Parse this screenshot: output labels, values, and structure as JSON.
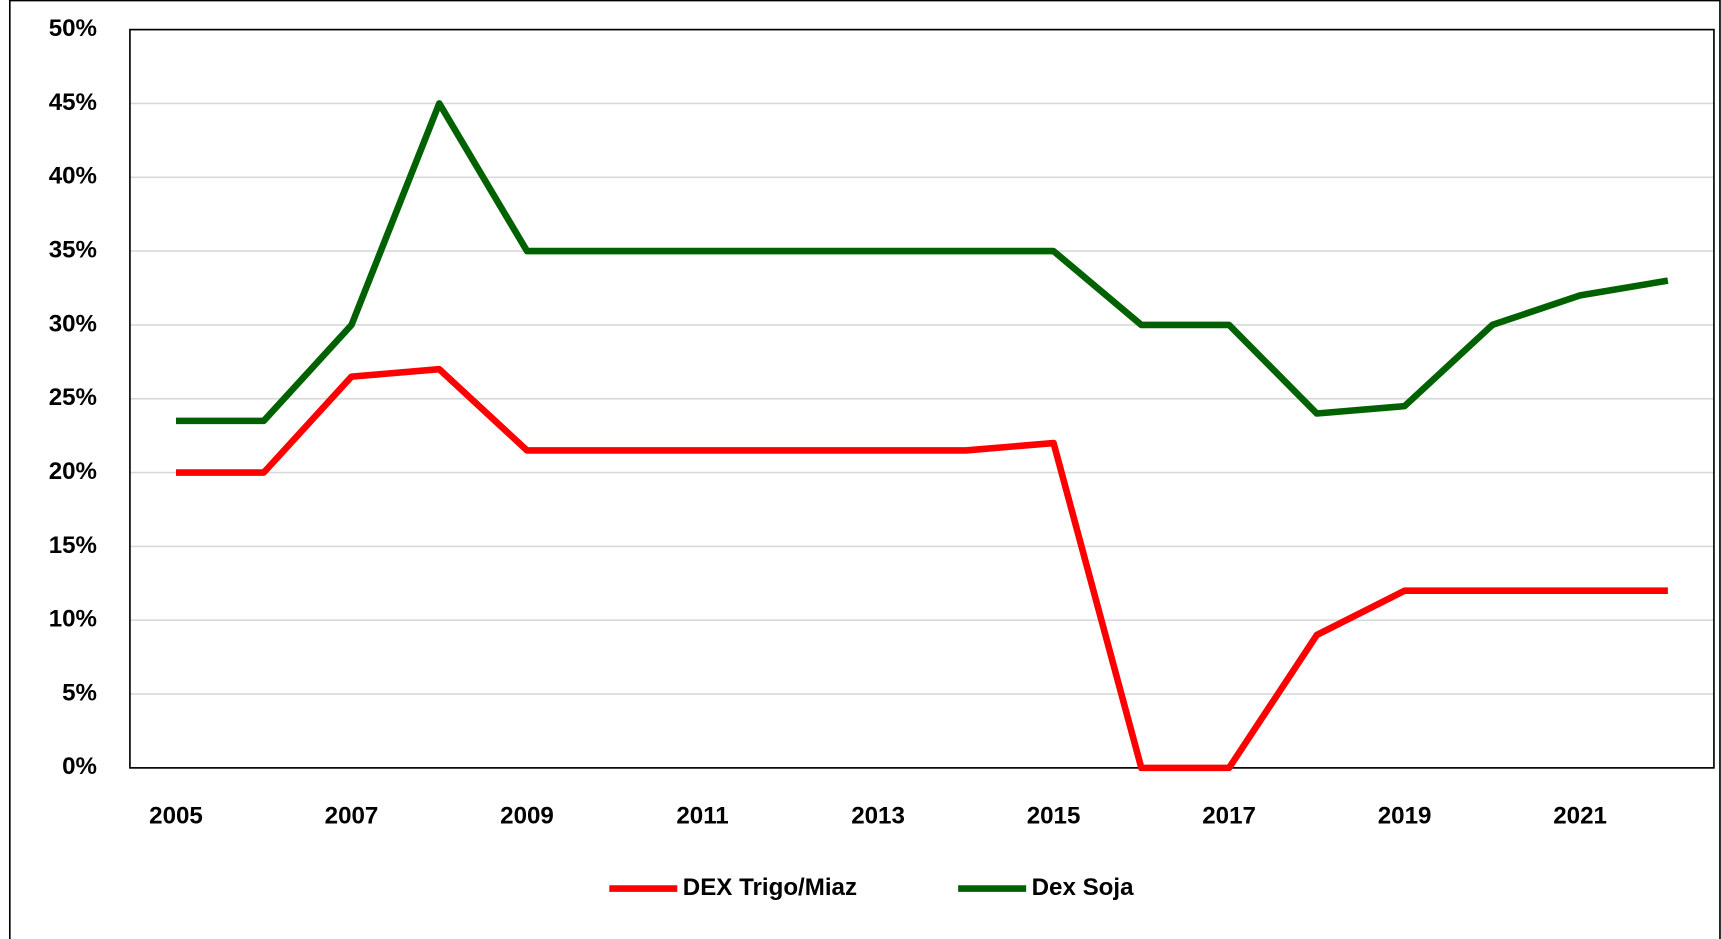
{
  "chart_data": {
    "type": "line",
    "x": [
      2005,
      2006,
      2007,
      2008,
      2009,
      2010,
      2011,
      2012,
      2013,
      2014,
      2015,
      2016,
      2017,
      2018,
      2019,
      2020,
      2021,
      2022
    ],
    "series": [
      {
        "name": "DEX Trigo/Miaz",
        "color": "#ff0000",
        "values": [
          20,
          20,
          26.5,
          27,
          21.5,
          21.5,
          21.5,
          21.5,
          21.5,
          21.5,
          22,
          0,
          0,
          9,
          12,
          12,
          12,
          12
        ]
      },
      {
        "name": "Dex Soja",
        "color": "#006100",
        "values": [
          23.5,
          23.5,
          30,
          45,
          35,
          35,
          35,
          35,
          35,
          35,
          35,
          30,
          30,
          24,
          24.5,
          30,
          32,
          33
        ]
      }
    ],
    "xlim": [
      2004.475,
      2022.525
    ],
    "xticks": [
      2005,
      2007,
      2009,
      2011,
      2013,
      2015,
      2017,
      2019,
      2021
    ],
    "ylim": [
      0,
      50
    ],
    "yticks": [
      {
        "value": 0,
        "label": "0%"
      },
      {
        "value": 5,
        "label": "5%"
      },
      {
        "value": 10,
        "label": "10%"
      },
      {
        "value": 15,
        "label": "15%"
      },
      {
        "value": 20,
        "label": "20%"
      },
      {
        "value": 25,
        "label": "25%"
      },
      {
        "value": 30,
        "label": "30%"
      },
      {
        "value": 35,
        "label": "35%"
      },
      {
        "value": 40,
        "label": "40%"
      },
      {
        "value": 45,
        "label": "45%"
      },
      {
        "value": 50,
        "label": "50%"
      }
    ],
    "grid": true,
    "legend": "bottom"
  }
}
